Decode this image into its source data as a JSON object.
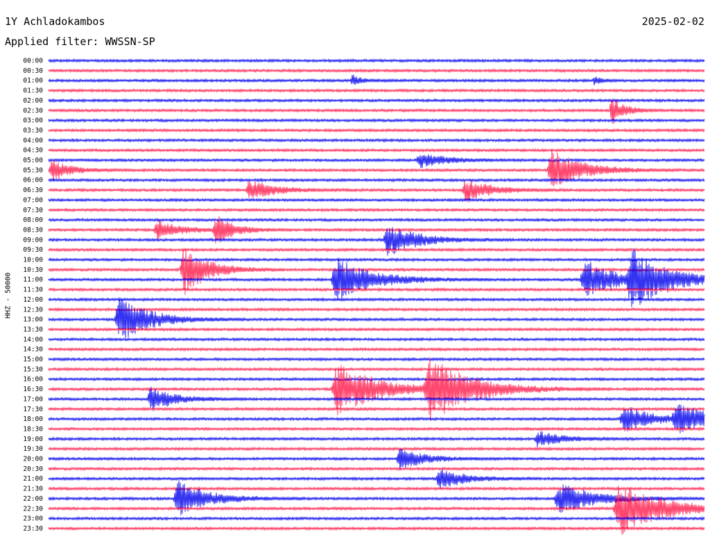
{
  "header": {
    "station": "1Y Achladokambos",
    "date": "2025-02-02",
    "filter": "Applied filter: WWSSN-SP"
  },
  "chart_data": {
    "type": "line",
    "ylabel": "HHZ - 50000",
    "trace_colors": [
      "#0000ee",
      "#ff1a4a"
    ],
    "rows": [
      "00:00",
      "00:30",
      "01:00",
      "01:30",
      "02:00",
      "02:30",
      "03:00",
      "03:30",
      "04:00",
      "04:30",
      "05:00",
      "05:30",
      "06:00",
      "06:30",
      "07:00",
      "07:30",
      "08:00",
      "08:30",
      "09:00",
      "09:30",
      "10:00",
      "10:30",
      "11:00",
      "11:30",
      "12:00",
      "12:30",
      "13:00",
      "13:30",
      "14:00",
      "14:30",
      "15:00",
      "15:30",
      "16:00",
      "16:30",
      "17:00",
      "17:30",
      "18:00",
      "18:30",
      "19:00",
      "19:30",
      "20:00",
      "20:30",
      "21:00",
      "21:30",
      "22:00",
      "22:30",
      "23:00",
      "23:30"
    ],
    "events": [
      {
        "row": 2,
        "x": 0.46,
        "amp": 8,
        "dur": 0.015
      },
      {
        "row": 2,
        "x": 0.83,
        "amp": 6,
        "dur": 0.012
      },
      {
        "row": 5,
        "x": 0.855,
        "amp": 22,
        "dur": 0.02
      },
      {
        "row": 10,
        "x": 0.56,
        "amp": 12,
        "dur": 0.04
      },
      {
        "row": 11,
        "x": 0.0,
        "amp": 16,
        "dur": 0.03
      },
      {
        "row": 11,
        "x": 0.76,
        "amp": 30,
        "dur": 0.05
      },
      {
        "row": 13,
        "x": 0.3,
        "amp": 16,
        "dur": 0.04
      },
      {
        "row": 13,
        "x": 0.63,
        "amp": 18,
        "dur": 0.04
      },
      {
        "row": 17,
        "x": 0.16,
        "amp": 14,
        "dur": 0.04
      },
      {
        "row": 17,
        "x": 0.25,
        "amp": 22,
        "dur": 0.03
      },
      {
        "row": 18,
        "x": 0.51,
        "amp": 24,
        "dur": 0.05
      },
      {
        "row": 21,
        "x": 0.2,
        "amp": 38,
        "dur": 0.04
      },
      {
        "row": 22,
        "x": 0.43,
        "amp": 32,
        "dur": 0.06
      },
      {
        "row": 22,
        "x": 0.81,
        "amp": 30,
        "dur": 0.05
      },
      {
        "row": 22,
        "x": 0.88,
        "amp": 42,
        "dur": 0.06
      },
      {
        "row": 26,
        "x": 0.1,
        "amp": 34,
        "dur": 0.05
      },
      {
        "row": 33,
        "x": 0.43,
        "amp": 38,
        "dur": 0.07
      },
      {
        "row": 33,
        "x": 0.57,
        "amp": 46,
        "dur": 0.07
      },
      {
        "row": 34,
        "x": 0.15,
        "amp": 18,
        "dur": 0.04
      },
      {
        "row": 36,
        "x": 0.87,
        "amp": 20,
        "dur": 0.05
      },
      {
        "row": 36,
        "x": 0.95,
        "amp": 22,
        "dur": 0.05
      },
      {
        "row": 38,
        "x": 0.74,
        "amp": 12,
        "dur": 0.04
      },
      {
        "row": 40,
        "x": 0.53,
        "amp": 16,
        "dur": 0.04
      },
      {
        "row": 42,
        "x": 0.59,
        "amp": 16,
        "dur": 0.04
      },
      {
        "row": 44,
        "x": 0.19,
        "amp": 26,
        "dur": 0.05
      },
      {
        "row": 44,
        "x": 0.77,
        "amp": 22,
        "dur": 0.06
      },
      {
        "row": 45,
        "x": 0.86,
        "amp": 40,
        "dur": 0.07
      }
    ]
  }
}
